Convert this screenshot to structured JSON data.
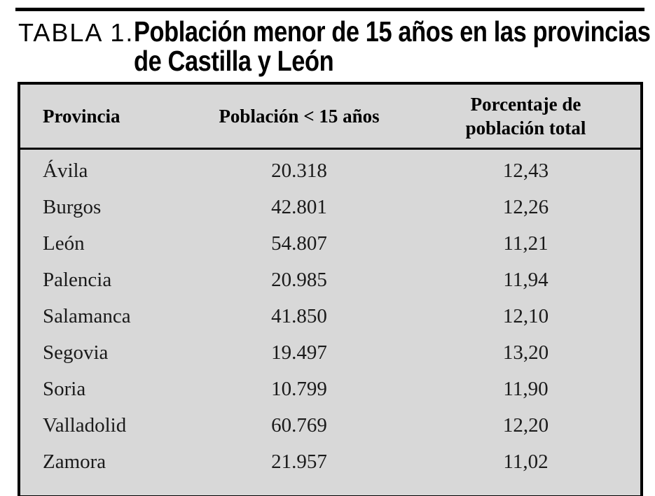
{
  "caption": {
    "label": "TABLA 1.",
    "title_line1": "Población menor de 15 años en las provincias",
    "title_line2": "de Castilla y León"
  },
  "table": {
    "background_color": "#d8d8d8",
    "border_color": "#000000",
    "columns": [
      {
        "label": "Provincia"
      },
      {
        "label": "Población < 15 años"
      },
      {
        "lines": [
          "Porcentaje de",
          "población total"
        ]
      }
    ],
    "rows": [
      {
        "provincia": "Ávila",
        "poblacion": "20.318",
        "porcentaje": "12,43"
      },
      {
        "provincia": "Burgos",
        "poblacion": "42.801",
        "porcentaje": "12,26"
      },
      {
        "provincia": "León",
        "poblacion": "54.807",
        "porcentaje": "11,21"
      },
      {
        "provincia": "Palencia",
        "poblacion": "20.985",
        "porcentaje": "11,94"
      },
      {
        "provincia": "Salamanca",
        "poblacion": "41.850",
        "porcentaje": "12,10"
      },
      {
        "provincia": "Segovia",
        "poblacion": "19.497",
        "porcentaje": "13,20"
      },
      {
        "provincia": "Soria",
        "poblacion": "10.799",
        "porcentaje": "11,90"
      },
      {
        "provincia": "Valladolid",
        "poblacion": "60.769",
        "porcentaje": "12,20"
      },
      {
        "provincia": "Zamora",
        "poblacion": "21.957",
        "porcentaje": "11,02"
      }
    ]
  }
}
